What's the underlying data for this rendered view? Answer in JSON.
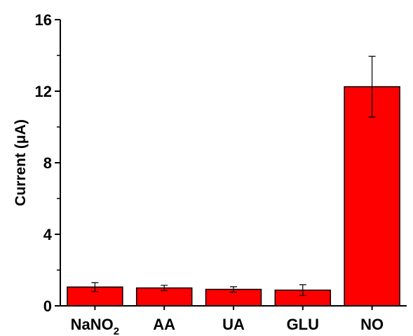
{
  "chart_data": {
    "type": "bar",
    "categories": [
      "NaNO2",
      "AA",
      "UA",
      "GLU",
      "NO"
    ],
    "category_labels": [
      {
        "main": "NaNO",
        "sub": "2"
      },
      {
        "main": "AA",
        "sub": ""
      },
      {
        "main": "UA",
        "sub": ""
      },
      {
        "main": "GLU",
        "sub": ""
      },
      {
        "main": "NO",
        "sub": ""
      }
    ],
    "values": [
      1.05,
      1.0,
      0.92,
      0.88,
      12.25
    ],
    "errors": [
      0.25,
      0.15,
      0.15,
      0.3,
      1.7
    ],
    "title": "",
    "xlabel": "",
    "ylabel": "Current (μA)",
    "ylim": [
      0,
      16
    ],
    "yticks": [
      0,
      4,
      8,
      12,
      16
    ],
    "ytick_labels": [
      "0",
      "4",
      "8",
      "12",
      "16"
    ],
    "minor_yticks": [
      2,
      6,
      10,
      14
    ],
    "grid": false,
    "bar_color": "#ff0000",
    "edge_color": "#000000"
  }
}
